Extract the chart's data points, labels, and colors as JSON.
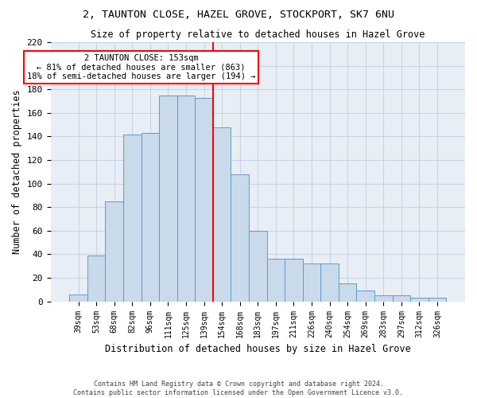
{
  "title1": "2, TAUNTON CLOSE, HAZEL GROVE, STOCKPORT, SK7 6NU",
  "title2": "Size of property relative to detached houses in Hazel Grove",
  "xlabel": "Distribution of detached houses by size in Hazel Grove",
  "ylabel": "Number of detached properties",
  "footnote1": "Contains HM Land Registry data © Crown copyright and database right 2024.",
  "footnote2": "Contains public sector information licensed under the Open Government Licence v3.0.",
  "bar_labels": [
    "39sqm",
    "53sqm",
    "68sqm",
    "82sqm",
    "96sqm",
    "111sqm",
    "125sqm",
    "139sqm",
    "154sqm",
    "168sqm",
    "183sqm",
    "197sqm",
    "211sqm",
    "226sqm",
    "240sqm",
    "254sqm",
    "269sqm",
    "283sqm",
    "297sqm",
    "312sqm",
    "326sqm"
  ],
  "bar_values": [
    6,
    39,
    85,
    142,
    143,
    175,
    175,
    173,
    148,
    108,
    60,
    36,
    36,
    32,
    32,
    15,
    9,
    5,
    5,
    3,
    3
  ],
  "bar_fill_color": "#c9daea",
  "bar_edge_color": "#5b9bd5",
  "grid_color": "#c8d4e4",
  "bg_color": "#e8eef6",
  "property_line_x": 8,
  "annotation_title": "2 TAUNTON CLOSE: 153sqm",
  "annotation_line1": "← 81% of detached houses are smaller (863)",
  "annotation_line2": "18% of semi-detached houses are larger (194) →",
  "annotation_box_color": "white",
  "annotation_box_edge": "red",
  "red_line_color": "red",
  "ylim": [
    0,
    220
  ],
  "yticks": [
    0,
    20,
    40,
    60,
    80,
    100,
    120,
    140,
    160,
    180,
    200,
    220
  ]
}
